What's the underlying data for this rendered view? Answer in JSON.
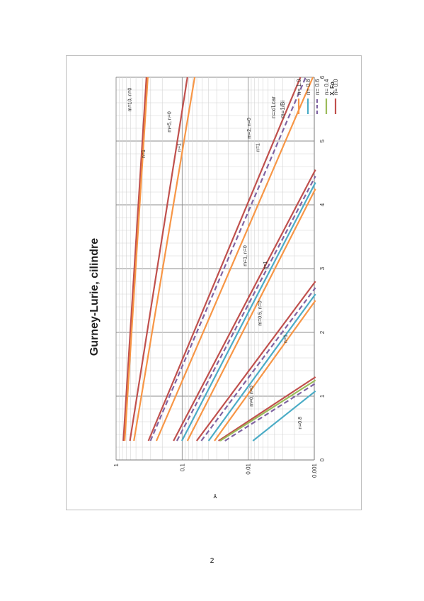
{
  "page": {
    "number": "2"
  },
  "chart_data": {
    "type": "line",
    "title": "Gurney-Lurie, cilindre",
    "xlabel": "X, Fo",
    "ylabel": "Y",
    "xlim": [
      0,
      6
    ],
    "ylim": [
      0.001,
      1
    ],
    "y_scale": "log",
    "x_ticks": [
      "0",
      "1",
      "2",
      "3",
      "4",
      "5",
      "6"
    ],
    "y_ticks": [
      {
        "value": 1,
        "label": "1"
      },
      {
        "value": 0.1,
        "label": "0.1"
      },
      {
        "value": 0.01,
        "label": "0.01"
      },
      {
        "value": 0.001,
        "label": "0.001"
      }
    ],
    "grid": true,
    "orientation": "rotated 90° counter-clockwise on the page",
    "legend": {
      "position": "top-right",
      "items": [
        {
          "label": "n= 0.0",
          "color": "#c0504d",
          "dash": "solid"
        },
        {
          "label": "n= 0.4",
          "color": "#9bbb59",
          "dash": "solid"
        },
        {
          "label": "n= 0.6",
          "color": "#8064a2",
          "dash": "dashed"
        },
        {
          "label": "n= 0.8",
          "color": "#4bacc6",
          "dash": "solid"
        },
        {
          "label": "n= 1.0",
          "color": "#f79646",
          "dash": "solid"
        }
      ],
      "notes": [
        "m=1/Bi",
        "n=x/Lcar"
      ]
    },
    "series": [
      {
        "group": "m=0",
        "color": "#c0504d",
        "dash": "solid",
        "x": [
          0.3,
          1.3
        ],
        "y": [
          0.0282,
          0.00096
        ]
      },
      {
        "group": "m=0",
        "color": "#9bbb59",
        "dash": "solid",
        "x": [
          0.3,
          1.25
        ],
        "y": [
          0.0266,
          0.00096
        ]
      },
      {
        "group": "m=0",
        "color": "#8064a2",
        "dash": "dashed",
        "x": [
          0.3,
          1.2
        ],
        "y": [
          0.0225,
          0.00096
        ]
      },
      {
        "group": "m=0",
        "color": "#4bacc6",
        "dash": "solid",
        "x": [
          0.3,
          1.08
        ],
        "y": [
          0.0085,
          0.00096
        ]
      },
      {
        "group": "m=0.5",
        "color": "#c0504d",
        "dash": "solid",
        "x": [
          0.3,
          2.8
        ],
        "y": [
          0.0603,
          0.00096
        ]
      },
      {
        "group": "m=0.5",
        "color": "#8064a2",
        "dash": "dashed",
        "x": [
          0.3,
          2.7
        ],
        "y": [
          0.0513,
          0.00096
        ]
      },
      {
        "group": "m=0.5",
        "color": "#4bacc6",
        "dash": "solid",
        "x": [
          0.3,
          2.6
        ],
        "y": [
          0.0398,
          0.00096
        ]
      },
      {
        "group": "m=0.5",
        "color": "#f79646",
        "dash": "solid",
        "x": [
          0.3,
          2.5
        ],
        "y": [
          0.0324,
          0.00096
        ]
      },
      {
        "group": "m=1",
        "color": "#c0504d",
        "dash": "solid",
        "x": [
          0.3,
          4.55
        ],
        "y": [
          0.135,
          0.00096
        ]
      },
      {
        "group": "m=1",
        "color": "#8064a2",
        "dash": "dashed",
        "x": [
          0.3,
          4.45
        ],
        "y": [
          0.12,
          0.00096
        ]
      },
      {
        "group": "m=1",
        "color": "#4bacc6",
        "dash": "solid",
        "x": [
          0.3,
          4.35
        ],
        "y": [
          0.101,
          0.00096
        ]
      },
      {
        "group": "m=1",
        "color": "#f79646",
        "dash": "solid",
        "x": [
          0.3,
          4.25
        ],
        "y": [
          0.0832,
          0.00096
        ]
      },
      {
        "group": "m=2",
        "color": "#c0504d",
        "dash": "solid",
        "x": [
          0.3,
          6.0
        ],
        "y": [
          0.324,
          0.00162
        ]
      },
      {
        "group": "m=2",
        "color": "#8064a2",
        "dash": "dashed",
        "x": [
          0.3,
          6.0
        ],
        "y": [
          0.302,
          0.00135
        ]
      },
      {
        "group": "m=2",
        "color": "#f79646",
        "dash": "solid",
        "x": [
          0.3,
          6.0
        ],
        "y": [
          0.245,
          0.00105
        ]
      },
      {
        "group": "m=5",
        "color": "#c0504d",
        "dash": "solid",
        "x": [
          0.3,
          6.0
        ],
        "y": [
          0.617,
          0.0832
        ]
      },
      {
        "group": "m=5",
        "color": "#f79646",
        "dash": "solid",
        "x": [
          0.3,
          6.0
        ],
        "y": [
          0.537,
          0.0646
        ]
      },
      {
        "group": "m=10",
        "color": "#c0504d",
        "dash": "solid",
        "x": [
          0.3,
          6.0
        ],
        "y": [
          0.776,
          0.347
        ]
      },
      {
        "group": "m=10",
        "color": "#f79646",
        "dash": "solid",
        "x": [
          0.3,
          6.0
        ],
        "y": [
          0.741,
          0.331
        ]
      }
    ],
    "annotations": [
      {
        "text": "m=10, n=0",
        "x": 5.65,
        "y": 0.585
      },
      {
        "text": "n=1",
        "x": 4.8,
        "y": 0.365
      },
      {
        "text": "m=5, n=0",
        "x": 5.3,
        "y": 0.148
      },
      {
        "text": "n=1",
        "x": 4.9,
        "y": 0.105
      },
      {
        "text": "m=2, n=0",
        "x": 5.2,
        "y": 0.0092
      },
      {
        "text": "n=1",
        "x": 4.9,
        "y": 0.0068
      },
      {
        "text": "m=1, n=0",
        "x": 3.2,
        "y": 0.0105
      },
      {
        "text": "n=1",
        "x": 3.05,
        "y": 0.0052
      },
      {
        "text": "m=0.5, n=0",
        "x": 2.3,
        "y": 0.0063
      },
      {
        "text": "n=1",
        "x": 1.9,
        "y": 0.0026
      },
      {
        "text": "m=0, n=0",
        "x": 1.0,
        "y": 0.0084
      },
      {
        "text": "n=0.8",
        "x": 0.58,
        "y": 0.00155
      }
    ]
  }
}
